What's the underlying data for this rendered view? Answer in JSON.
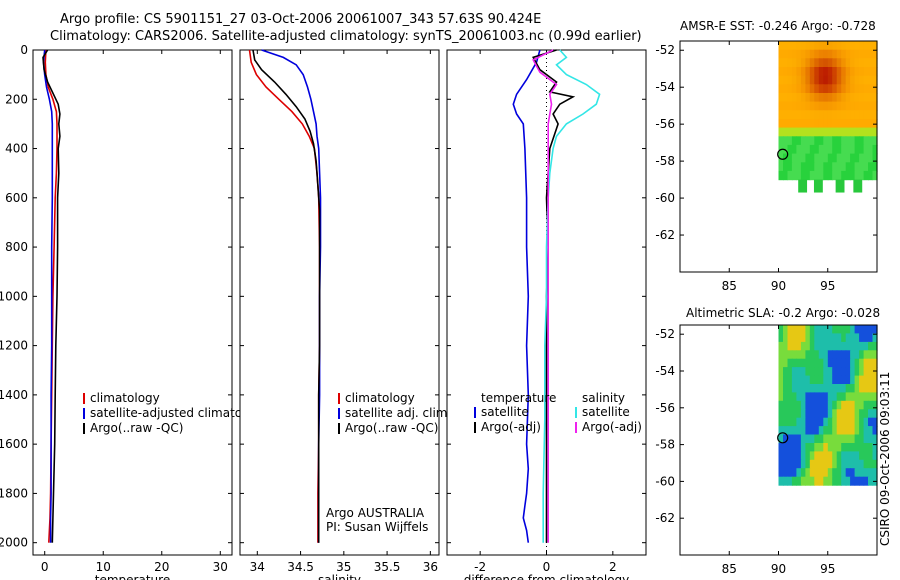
{
  "title": {
    "line1": "Argo profile: CS 5901151_27 03-Oct-2006 20061007_343 57.63S 90.424E",
    "line2": "Climatology: CARS2006. Satellite-adjusted climatology: synTS_20061003.nc (0.99d earlier)"
  },
  "colors": {
    "climatology": "#dd0000",
    "satellite": "#0000dd",
    "argo": "#000000",
    "salinity_satellite": "#33e6e6",
    "salinity_argo": "#ee22ee"
  },
  "chart_data": [
    {
      "id": "temperature",
      "type": "line",
      "xlabel": "temperature",
      "xlim": [
        -2,
        32
      ],
      "xticks": [
        0,
        10,
        20,
        30
      ],
      "ylim": [
        2050,
        0
      ],
      "yticks": [
        0,
        200,
        400,
        600,
        800,
        1000,
        1200,
        1400,
        1600,
        1800,
        2000
      ],
      "legend": [
        "climatology",
        "satellite-adjusted climatology",
        "Argo(..raw -QC)"
      ],
      "series": [
        {
          "name": "climatology",
          "color": "#dd0000",
          "x": [
            0.2,
            0.1,
            0.2,
            0.6,
            1.4,
            2.0,
            2.1,
            2.1,
            2.0,
            1.8,
            1.6,
            1.4,
            1.3,
            1.2,
            1.1,
            1.0,
            0.9,
            0.8,
            0.7
          ],
          "y": [
            0,
            50,
            100,
            150,
            200,
            250,
            300,
            400,
            500,
            600,
            800,
            1000,
            1200,
            1400,
            1600,
            1800,
            1900,
            1950,
            2000
          ]
        },
        {
          "name": "satellite-adjusted climatology",
          "color": "#0000dd",
          "x": [
            0.0,
            -0.2,
            0.0,
            0.3,
            0.8,
            1.2,
            1.3,
            1.3,
            1.3,
            1.2,
            1.2,
            1.2,
            1.1,
            1.1,
            1.1,
            1.0,
            1.0
          ],
          "y": [
            0,
            50,
            100,
            150,
            200,
            250,
            300,
            400,
            600,
            800,
            1000,
            1200,
            1400,
            1600,
            1800,
            1900,
            2000
          ]
        },
        {
          "name": "Argo(..raw -QC)",
          "color": "#000000",
          "x": [
            0.5,
            -0.3,
            -0.1,
            0.5,
            1.5,
            2.3,
            2.6,
            2.4,
            2.6,
            2.3,
            2.4,
            2.2,
            2.2,
            2.1,
            1.9,
            1.8,
            1.7,
            1.6,
            1.5,
            1.4,
            1.3
          ],
          "y": [
            0,
            30,
            80,
            130,
            180,
            220,
            260,
            300,
            350,
            400,
            500,
            600,
            800,
            1000,
            1200,
            1400,
            1600,
            1700,
            1800,
            1900,
            2000
          ]
        }
      ]
    },
    {
      "id": "salinity",
      "type": "line",
      "xlabel": "salinity",
      "xlim": [
        33.8,
        36.1
      ],
      "xticks": [
        34,
        34.5,
        35,
        35.5,
        36
      ],
      "xticklabels": [
        "34",
        "34.5",
        "35",
        "35.5",
        "36"
      ],
      "ylim": [
        2050,
        0
      ],
      "legend": [
        "climatology",
        "satellite adj. clim.",
        "Argo(..raw -QC)"
      ],
      "annotations": [
        "Argo AUSTRALIA",
        "PI: Susan Wijffels"
      ],
      "series": [
        {
          "name": "climatology",
          "color": "#dd0000",
          "x": [
            33.91,
            33.93,
            33.99,
            34.1,
            34.25,
            34.4,
            34.52,
            34.6,
            34.66,
            34.69,
            34.71,
            34.72,
            34.72,
            34.72,
            34.71,
            34.71,
            34.7,
            34.7
          ],
          "y": [
            0,
            50,
            100,
            150,
            200,
            250,
            300,
            350,
            400,
            500,
            600,
            800,
            1000,
            1200,
            1400,
            1600,
            1800,
            2000
          ]
        },
        {
          "name": "satellite adj. clim.",
          "color": "#0000dd",
          "x": [
            34.05,
            34.3,
            34.45,
            34.53,
            34.58,
            34.62,
            34.65,
            34.68,
            34.69,
            34.71,
            34.72,
            34.73,
            34.73,
            34.72,
            34.72,
            34.72,
            34.71,
            34.71,
            34.71
          ],
          "y": [
            0,
            30,
            60,
            100,
            150,
            200,
            250,
            300,
            350,
            400,
            500,
            600,
            800,
            1000,
            1200,
            1400,
            1600,
            1800,
            2000
          ]
        },
        {
          "name": "Argo(..raw -QC)",
          "color": "#000000",
          "x": [
            33.95,
            33.97,
            34.05,
            34.2,
            34.33,
            34.45,
            34.55,
            34.61,
            34.65,
            34.68,
            34.7,
            34.72,
            34.72,
            34.72,
            34.72,
            34.71,
            34.71,
            34.71,
            34.71
          ],
          "y": [
            0,
            40,
            80,
            130,
            180,
            230,
            280,
            330,
            380,
            450,
            550,
            650,
            800,
            1000,
            1200,
            1400,
            1600,
            1800,
            2000
          ]
        }
      ]
    },
    {
      "id": "difference",
      "type": "line",
      "xlabel": "difference from climatology",
      "xlim": [
        -3,
        3
      ],
      "xticks": [
        -2,
        0,
        2
      ],
      "ylim": [
        2050,
        0
      ],
      "legend_headers": [
        "temperature",
        "salinity"
      ],
      "legend": [
        "satellite",
        "Argo(-adj)",
        "satellite",
        "Argo(-adj)"
      ],
      "series": [
        {
          "name": "temperature satellite",
          "color": "#0000dd",
          "x": [
            -0.2,
            -0.3,
            -0.6,
            -0.9,
            -1.0,
            -0.9,
            -0.7,
            -0.65,
            -0.6,
            -0.6,
            -0.55,
            -0.6,
            -0.55,
            -0.6,
            -0.55,
            -0.6,
            -0.65,
            -0.7,
            -0.6,
            -0.55
          ],
          "y": [
            0,
            50,
            120,
            180,
            220,
            260,
            300,
            400,
            600,
            800,
            1000,
            1200,
            1400,
            1600,
            1700,
            1800,
            1850,
            1900,
            1950,
            2000
          ]
        },
        {
          "name": "temperature Argo(-adj)",
          "color": "#000000",
          "x": [
            0.3,
            -0.4,
            -0.2,
            0.3,
            0.1,
            0.8,
            0.4,
            0.2,
            0.35,
            0.1,
            0.0,
            0.05,
            0.0,
            0.0,
            0.0,
            0.0,
            0.0,
            0.0
          ],
          "y": [
            0,
            30,
            80,
            130,
            170,
            190,
            220,
            260,
            300,
            400,
            600,
            800,
            1000,
            1200,
            1400,
            1600,
            1800,
            2000
          ]
        },
        {
          "name": "salinity satellite",
          "color": "#33e6e6",
          "x": [
            0.4,
            0.6,
            0.3,
            0.6,
            1.2,
            1.6,
            1.5,
            1.1,
            0.6,
            0.3,
            0.2,
            0.1,
            0.05,
            0.0,
            0.0,
            -0.05,
            -0.05,
            -0.1,
            -0.1
          ],
          "y": [
            0,
            30,
            60,
            100,
            140,
            180,
            220,
            260,
            300,
            350,
            400,
            500,
            600,
            800,
            1000,
            1200,
            1500,
            1800,
            2000
          ]
        },
        {
          "name": "salinity Argo(-adj)",
          "color": "#ee22ee",
          "x": [
            0.2,
            -0.4,
            -0.2,
            0.3,
            0.1,
            0.15,
            0.1,
            0.05,
            0.05,
            0.05,
            0.05,
            0.05,
            0.05,
            0.05,
            0.05
          ],
          "y": [
            0,
            40,
            90,
            140,
            180,
            220,
            260,
            300,
            400,
            600,
            800,
            1000,
            1400,
            1800,
            2000
          ]
        }
      ]
    },
    {
      "id": "sst_map",
      "type": "heatmap",
      "title": "AMSR-E SST: -0.246 Argo: -0.728",
      "xlim": [
        80,
        100
      ],
      "xticks": [
        85,
        90,
        95
      ],
      "ylim": [
        -64,
        -51.5
      ],
      "yticks": [
        -52,
        -54,
        -56,
        -58,
        -60,
        -62
      ],
      "float_position": {
        "lon": 90.424,
        "lat": -57.63
      }
    },
    {
      "id": "sla_map",
      "type": "heatmap",
      "title": "Altimetric SLA: -0.2 Argo: -0.028",
      "xlim": [
        80,
        100
      ],
      "xticks": [
        85,
        90,
        95
      ],
      "ylim": [
        -64,
        -51.5
      ],
      "yticks": [
        -52,
        -54,
        -56,
        -58,
        -60,
        -62
      ],
      "float_position": {
        "lon": 90.424,
        "lat": -57.63
      }
    }
  ],
  "side_label": "CSIRO 09-Oct-2006 09:03:11"
}
